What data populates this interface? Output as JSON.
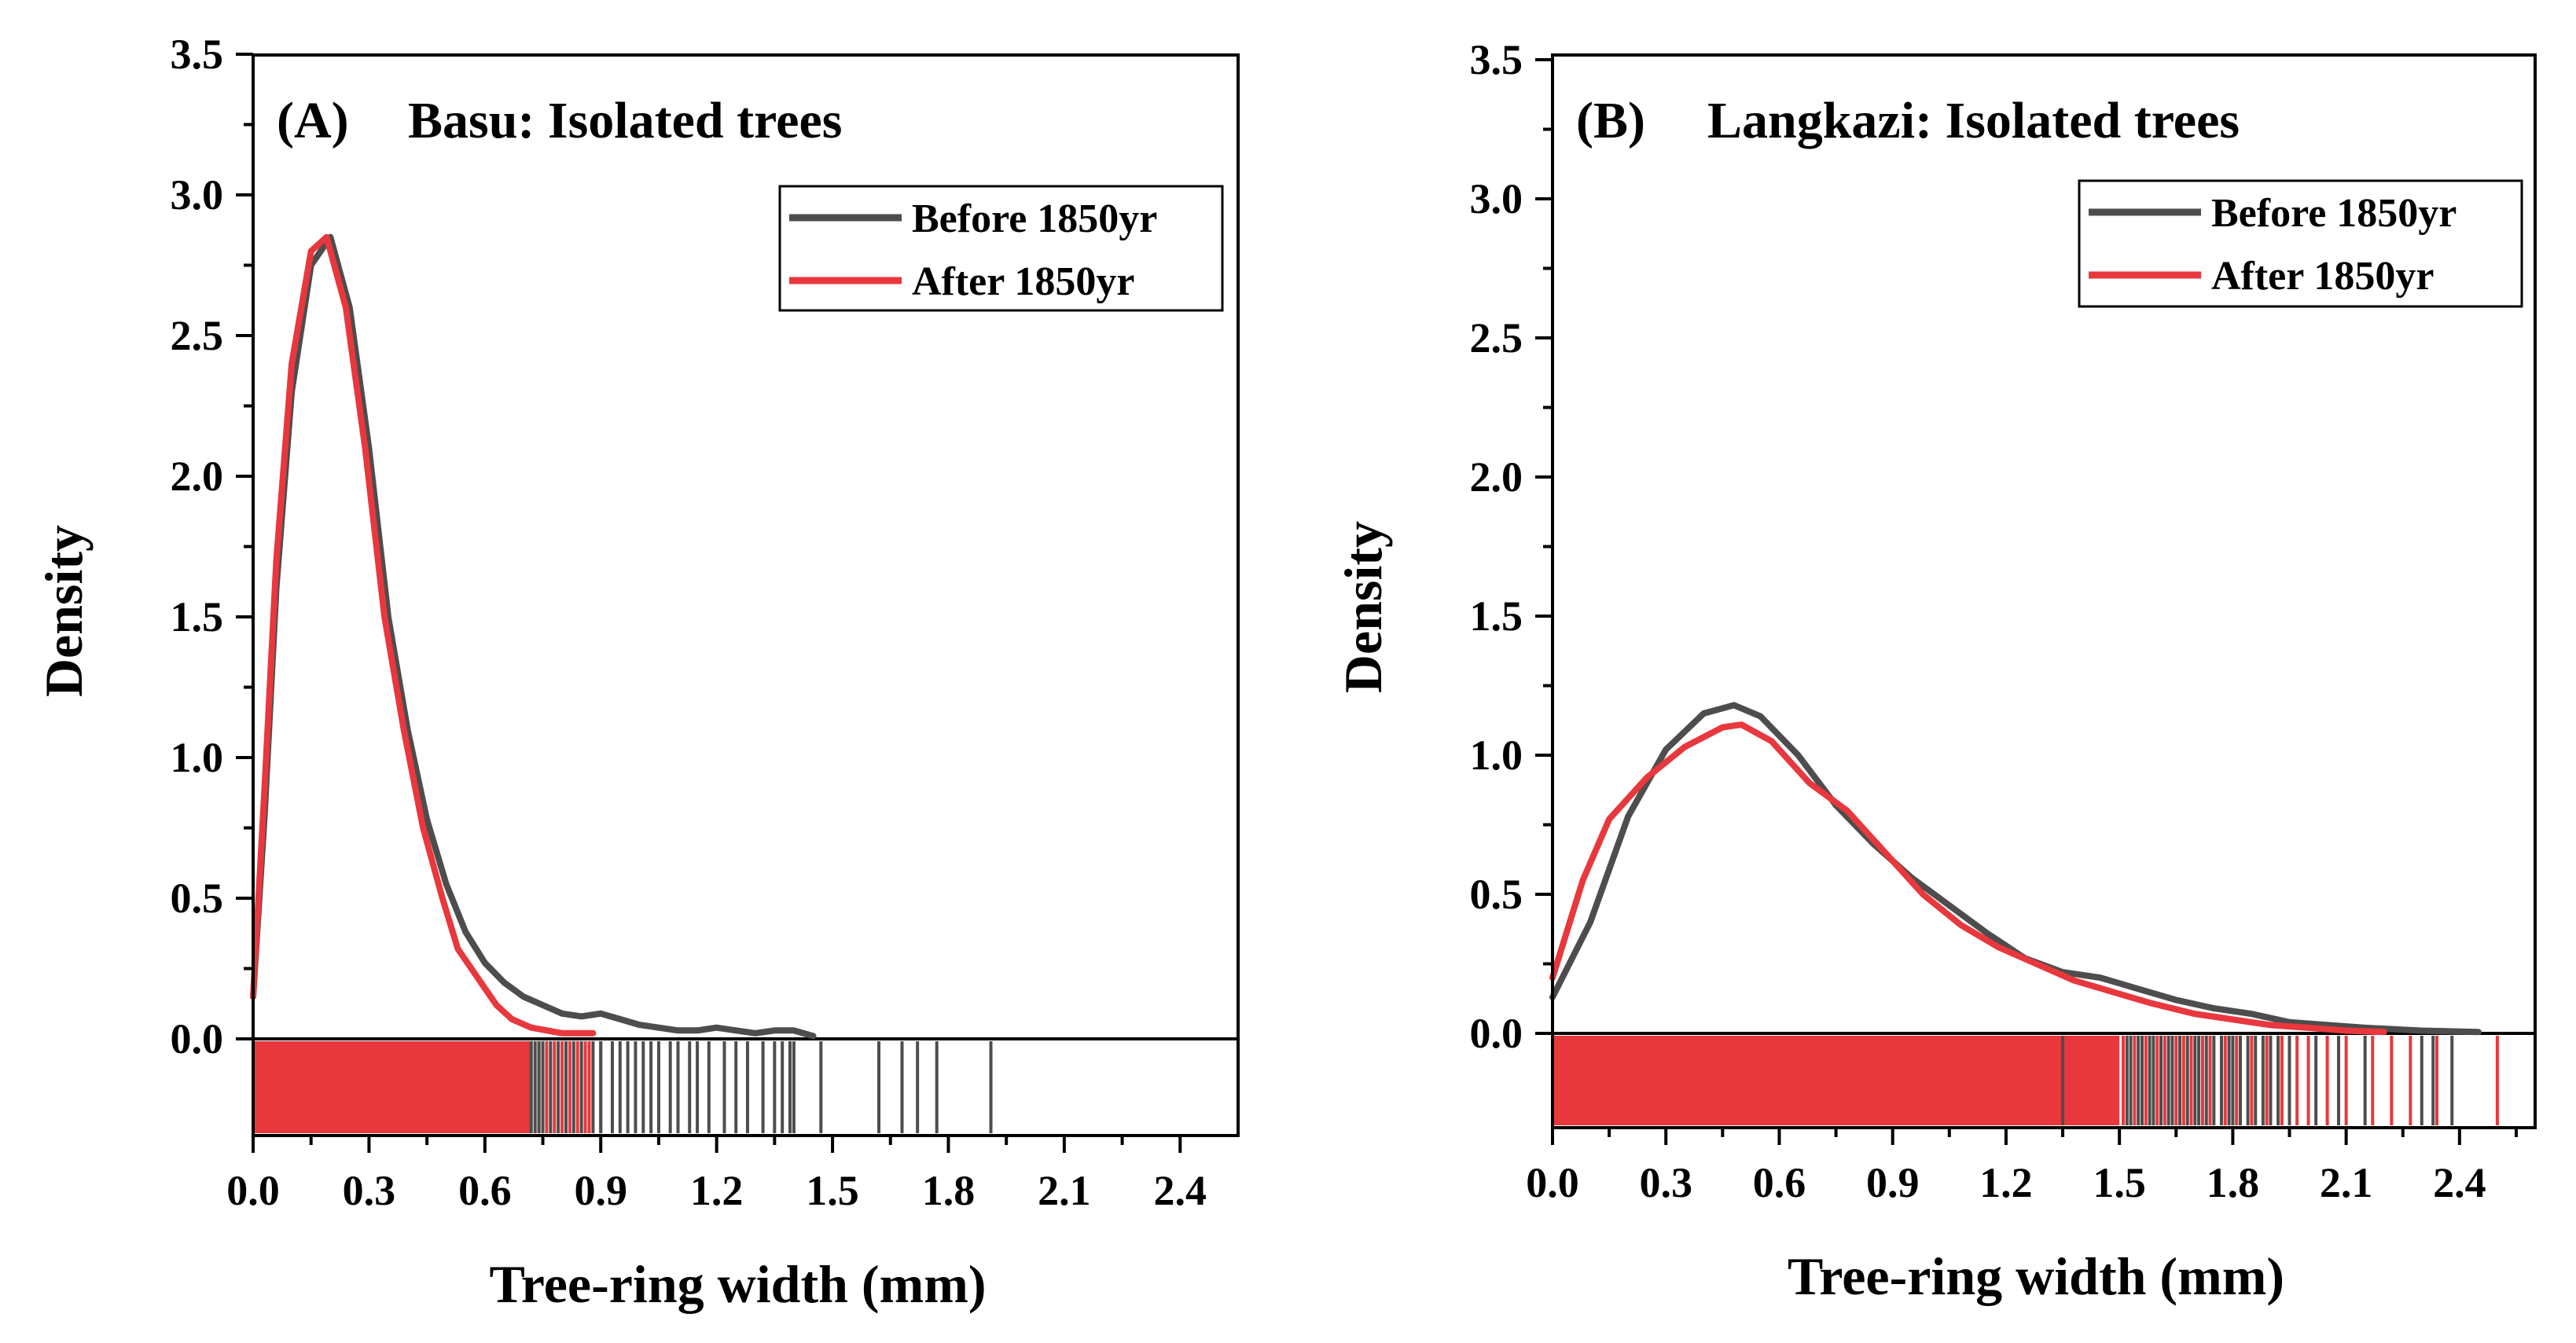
{
  "chart_data": [
    {
      "type": "line",
      "panel_label": "(A)",
      "title": "Basu: Isolated trees",
      "xlabel": "Tree-ring width (mm)",
      "ylabel": "Density",
      "xlim": [
        0,
        2.55
      ],
      "ylim": [
        -0.35,
        3.5
      ],
      "x_ticks": [
        "0.0",
        "0.3",
        "0.6",
        "0.9",
        "1.2",
        "1.5",
        "1.8",
        "2.1",
        "2.4"
      ],
      "x_tick_values": [
        0,
        0.3,
        0.6,
        0.9,
        1.2,
        1.5,
        1.8,
        2.1,
        2.4
      ],
      "y_ticks": [
        "0.0",
        "0.5",
        "1.0",
        "1.5",
        "2.0",
        "2.5",
        "3.0",
        "3.5"
      ],
      "y_tick_values": [
        0,
        0.5,
        1.0,
        1.5,
        2.0,
        2.5,
        3.0,
        3.5
      ],
      "legend_position": "top-right",
      "series": [
        {
          "name": "Before 1850yr",
          "color": "#4d4d4d",
          "points": [
            [
              0,
              0.15
            ],
            [
              0.03,
              0.8
            ],
            [
              0.06,
              1.6
            ],
            [
              0.1,
              2.3
            ],
            [
              0.15,
              2.75
            ],
            [
              0.2,
              2.85
            ],
            [
              0.25,
              2.6
            ],
            [
              0.3,
              2.1
            ],
            [
              0.35,
              1.5
            ],
            [
              0.4,
              1.1
            ],
            [
              0.45,
              0.78
            ],
            [
              0.5,
              0.55
            ],
            [
              0.55,
              0.38
            ],
            [
              0.6,
              0.27
            ],
            [
              0.65,
              0.2
            ],
            [
              0.7,
              0.15
            ],
            [
              0.75,
              0.12
            ],
            [
              0.8,
              0.09
            ],
            [
              0.85,
              0.08
            ],
            [
              0.9,
              0.09
            ],
            [
              0.95,
              0.07
            ],
            [
              1.0,
              0.05
            ],
            [
              1.05,
              0.04
            ],
            [
              1.1,
              0.03
            ],
            [
              1.15,
              0.03
            ],
            [
              1.2,
              0.04
            ],
            [
              1.25,
              0.03
            ],
            [
              1.3,
              0.02
            ],
            [
              1.35,
              0.03
            ],
            [
              1.4,
              0.03
            ],
            [
              1.45,
              0.01
            ]
          ]
        },
        {
          "name": "After 1850yr",
          "color": "#e8383d",
          "points": [
            [
              0,
              0.15
            ],
            [
              0.03,
              0.9
            ],
            [
              0.06,
              1.7
            ],
            [
              0.1,
              2.4
            ],
            [
              0.15,
              2.8
            ],
            [
              0.19,
              2.85
            ],
            [
              0.24,
              2.6
            ],
            [
              0.29,
              2.1
            ],
            [
              0.34,
              1.5
            ],
            [
              0.39,
              1.1
            ],
            [
              0.44,
              0.75
            ],
            [
              0.49,
              0.5
            ],
            [
              0.53,
              0.32
            ],
            [
              0.57,
              0.24
            ],
            [
              0.6,
              0.18
            ],
            [
              0.63,
              0.12
            ],
            [
              0.67,
              0.07
            ],
            [
              0.72,
              0.04
            ],
            [
              0.8,
              0.02
            ],
            [
              0.88,
              0.02
            ]
          ]
        }
      ],
      "rug": {
        "red_dense_range": [
          0,
          0.72
        ],
        "black": [
          0.72,
          0.73,
          0.74,
          0.75,
          0.77,
          0.79,
          0.81,
          0.83,
          0.85,
          0.88,
          0.9,
          0.93,
          0.95,
          0.97,
          0.99,
          1.01,
          1.03,
          1.05,
          1.08,
          1.1,
          1.13,
          1.15,
          1.18,
          1.22,
          1.25,
          1.28,
          1.32,
          1.35,
          1.37,
          1.39,
          1.4,
          1.47,
          1.62,
          1.68,
          1.72,
          1.77,
          1.91
        ],
        "red": [
          0.74,
          0.76,
          0.78,
          0.8,
          0.82,
          0.84,
          0.86,
          0.87,
          0.9
        ]
      }
    },
    {
      "type": "line",
      "panel_label": "(B)",
      "title": "Langkazi: Isolated trees",
      "xlabel": "Tree-ring width (mm)",
      "ylabel": "Density",
      "xlim": [
        0,
        2.6
      ],
      "ylim": [
        -0.35,
        3.5
      ],
      "x_ticks": [
        "0.0",
        "0.3",
        "0.6",
        "0.9",
        "1.2",
        "1.5",
        "1.8",
        "2.1",
        "2.4"
      ],
      "x_tick_values": [
        0,
        0.3,
        0.6,
        0.9,
        1.2,
        1.5,
        1.8,
        2.1,
        2.4
      ],
      "y_ticks": [
        "0.0",
        "0.5",
        "1.0",
        "1.5",
        "2.0",
        "2.5",
        "3.0",
        "3.5"
      ],
      "y_tick_values": [
        0,
        0.5,
        1.0,
        1.5,
        2.0,
        2.5,
        3.0,
        3.5
      ],
      "legend_position": "top-right",
      "series": [
        {
          "name": "Before 1850yr",
          "color": "#4d4d4d",
          "points": [
            [
              0,
              0.13
            ],
            [
              0.1,
              0.4
            ],
            [
              0.2,
              0.78
            ],
            [
              0.3,
              1.02
            ],
            [
              0.4,
              1.15
            ],
            [
              0.48,
              1.18
            ],
            [
              0.55,
              1.14
            ],
            [
              0.65,
              1.0
            ],
            [
              0.75,
              0.82
            ],
            [
              0.85,
              0.68
            ],
            [
              0.95,
              0.56
            ],
            [
              1.05,
              0.46
            ],
            [
              1.15,
              0.36
            ],
            [
              1.25,
              0.27
            ],
            [
              1.35,
              0.22
            ],
            [
              1.45,
              0.2
            ],
            [
              1.55,
              0.16
            ],
            [
              1.65,
              0.12
            ],
            [
              1.75,
              0.09
            ],
            [
              1.85,
              0.07
            ],
            [
              1.95,
              0.04
            ],
            [
              2.05,
              0.03
            ],
            [
              2.15,
              0.02
            ],
            [
              2.3,
              0.01
            ],
            [
              2.45,
              0.005
            ]
          ]
        },
        {
          "name": "After 1850yr",
          "color": "#e8383d",
          "points": [
            [
              0,
              0.2
            ],
            [
              0.08,
              0.55
            ],
            [
              0.15,
              0.77
            ],
            [
              0.25,
              0.92
            ],
            [
              0.35,
              1.03
            ],
            [
              0.45,
              1.1
            ],
            [
              0.5,
              1.11
            ],
            [
              0.58,
              1.05
            ],
            [
              0.68,
              0.9
            ],
            [
              0.78,
              0.8
            ],
            [
              0.88,
              0.65
            ],
            [
              0.98,
              0.5
            ],
            [
              1.08,
              0.39
            ],
            [
              1.18,
              0.31
            ],
            [
              1.28,
              0.25
            ],
            [
              1.38,
              0.19
            ],
            [
              1.48,
              0.15
            ],
            [
              1.58,
              0.11
            ],
            [
              1.7,
              0.07
            ],
            [
              1.8,
              0.05
            ],
            [
              1.9,
              0.03
            ],
            [
              2.0,
              0.02
            ],
            [
              2.1,
              0.01
            ],
            [
              2.2,
              0.005
            ]
          ]
        }
      ],
      "rug": {
        "red_dense_range": [
          0,
          1.5
        ],
        "black": [
          1.35,
          1.52,
          1.53,
          1.55,
          1.56,
          1.58,
          1.59,
          1.61,
          1.63,
          1.64,
          1.66,
          1.68,
          1.7,
          1.71,
          1.73,
          1.75,
          1.77,
          1.79,
          1.8,
          1.82,
          1.84,
          1.86,
          1.88,
          1.9,
          1.92,
          1.95,
          2.02,
          2.08,
          2.15,
          2.3,
          2.33,
          2.38
        ],
        "red": [
          1.51,
          1.54,
          1.57,
          1.6,
          1.62,
          1.65,
          1.67,
          1.69,
          1.72,
          1.74,
          1.78,
          1.81,
          1.85,
          1.89,
          1.93,
          1.97,
          2.0,
          2.05,
          2.1,
          2.17,
          2.22,
          2.27,
          2.34,
          2.5
        ]
      }
    }
  ]
}
